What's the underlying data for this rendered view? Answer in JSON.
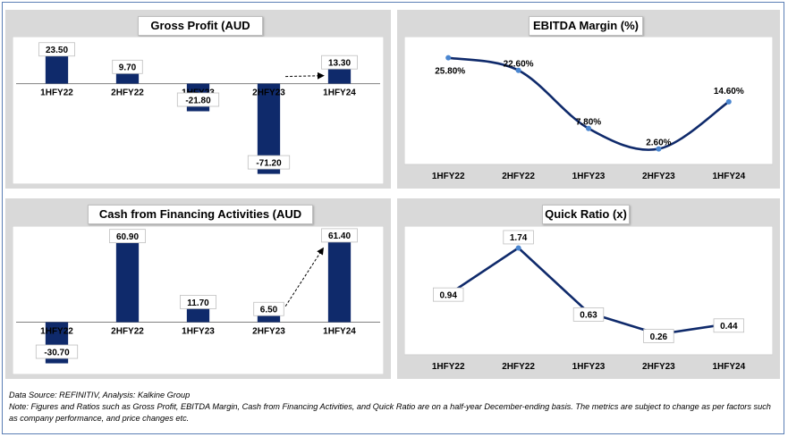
{
  "footer": {
    "source": "Data Source: REFINITIV, Analysis: Kalkine Group",
    "note": "Note: Figures and Ratios such as Gross Profit, EBITDA Margin, Cash from Financing Activities, and Quick Ratio are on a half-year December-ending basis. The metrics are subject to change as per factors such as company performance, and price changes etc."
  },
  "colors": {
    "bar": "#0f2a6b",
    "line": "#0f2a6b",
    "marker": "#4a86d0",
    "panel_bg": "#d9d9d9",
    "plot_bg": "#ffffff"
  },
  "chart_data": [
    {
      "type": "bar",
      "title": "Gross Profit (AUD mn)",
      "categories": [
        "1HFY22",
        "2HFY22",
        "1HFY23",
        "2HFY23",
        "1HFY24"
      ],
      "values": [
        23.5,
        9.7,
        -21.8,
        -71.2,
        13.3
      ],
      "data_labels": [
        "23.50",
        "9.70",
        "-21.80",
        "-71.20",
        "13.30"
      ],
      "ylim": [
        -75,
        30
      ],
      "grid": false,
      "annotation": "dashed arrow toward 1HFY24"
    },
    {
      "type": "line",
      "title": "EBITDA Margin (%)",
      "categories": [
        "1HFY22",
        "2HFY22",
        "1HFY23",
        "2HFY23",
        "1HFY24"
      ],
      "values": [
        25.8,
        22.6,
        7.8,
        2.6,
        14.6
      ],
      "data_labels": [
        "25.80%",
        "22.60%",
        "7.80%",
        "2.60%",
        "14.60%"
      ],
      "ylim": [
        0,
        28
      ],
      "grid": false,
      "smooth": true
    },
    {
      "type": "bar",
      "title": "Cash from Financing Activities (AUD mn)",
      "categories": [
        "1HFY22",
        "2HFY22",
        "1HFY23",
        "2HFY23",
        "1HFY24"
      ],
      "values": [
        -30.7,
        60.9,
        11.7,
        6.5,
        61.4
      ],
      "data_labels": [
        "-30.70",
        "60.90",
        "11.70",
        "6.50",
        "61.40"
      ],
      "ylim": [
        -35,
        65
      ],
      "grid": false,
      "annotation": "dashed arrow toward 1HFY24"
    },
    {
      "type": "line",
      "title": "Quick Ratio (x)",
      "categories": [
        "1HFY22",
        "2HFY22",
        "1HFY23",
        "2HFY23",
        "1HFY24"
      ],
      "values": [
        0.94,
        1.74,
        0.63,
        0.26,
        0.44
      ],
      "data_labels": [
        "0.94",
        "1.74",
        "0.63",
        "0.26",
        "0.44"
      ],
      "ylim": [
        0,
        1.9
      ],
      "grid": false,
      "smooth": false
    }
  ]
}
